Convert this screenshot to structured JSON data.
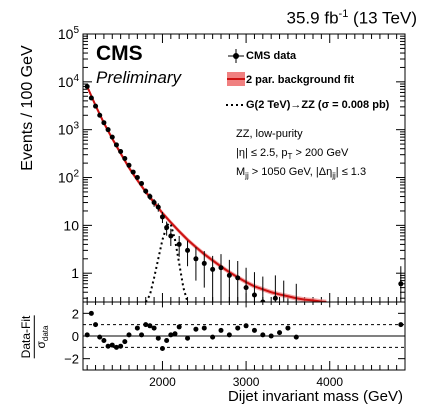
{
  "header": {
    "lumi_value": "35.9",
    "lumi_unit_base": "fb",
    "lumi_unit_exp": "-1",
    "energy": "(13 TeV)"
  },
  "branding": {
    "experiment": "CMS",
    "status": "Preliminary"
  },
  "legend": {
    "data": "CMS data",
    "fit": "2 par. background fit",
    "signal_prefix": "G(2 TeV)",
    "signal_arrow": "→",
    "signal_suffix": "ZZ (σ = 0.008 pb)"
  },
  "annotations": {
    "line1": "ZZ, low-purity",
    "line2a": "|η| ≤ 2.5, p",
    "line2sub": "T",
    "line2b": " > 200 GeV",
    "line3a": "M",
    "line3sub": "jj",
    "line3b": " > 1050 GeV, |Δη",
    "line3sub2": "jj",
    "line3c": "| ≤ 1.3"
  },
  "colors": {
    "fit_line": "#cc1111",
    "fit_band": "#f08080",
    "data": "#000000",
    "signal": "#000000"
  },
  "chart_data": {
    "type": "scatter",
    "title": "",
    "xlabel": "Dijet invariant mass (GeV)",
    "ylabel": "Events / 100 GeV",
    "xlim": [
      1050,
      4900
    ],
    "ylim": [
      0.25,
      100000
    ],
    "yscale": "log",
    "x_ticks": [
      2000,
      3000,
      4000
    ],
    "y_ticks": [
      {
        "value": 1,
        "base": "1",
        "exp": ""
      },
      {
        "value": 10,
        "base": "10",
        "exp": ""
      },
      {
        "value": 100,
        "base": "10",
        "exp": "2"
      },
      {
        "value": 1000,
        "base": "10",
        "exp": "3"
      },
      {
        "value": 10000,
        "base": "10",
        "exp": "4"
      },
      {
        "value": 100000,
        "base": "10",
        "exp": "5"
      }
    ],
    "series": [
      {
        "name": "CMS data",
        "x": [
          1100,
          1150,
          1200,
          1250,
          1300,
          1350,
          1400,
          1450,
          1500,
          1550,
          1600,
          1650,
          1700,
          1750,
          1800,
          1850,
          1900,
          1950,
          2000,
          2050,
          2100,
          2200,
          2300,
          2400,
          2500,
          2600,
          2700,
          2800,
          2900,
          3000,
          3100,
          3200,
          3350,
          3450,
          3600,
          4850
        ],
        "y": [
          8000,
          4600,
          3100,
          2000,
          1400,
          1000,
          700,
          480,
          350,
          250,
          180,
          130,
          100,
          75,
          52,
          40,
          30,
          24,
          15,
          9,
          6,
          4,
          3,
          2,
          1.6,
          1.2,
          1.3,
          0.9,
          0.8,
          0.5,
          0.35,
          0.25,
          0.3,
          0.2,
          0.15,
          0.6
        ],
        "err_up": [
          95,
          70,
          55,
          45,
          37,
          32,
          26,
          22,
          19,
          16,
          13,
          11,
          10,
          9,
          7,
          6.5,
          5.5,
          5,
          4,
          3,
          2.5,
          2,
          1.8,
          1.5,
          1.3,
          1.1,
          1.2,
          1,
          1,
          0.8,
          0.7,
          0.6,
          0.6,
          0.5,
          0.45,
          0.8
        ],
        "err_down": [
          90,
          68,
          55,
          44,
          37,
          31,
          26,
          22,
          18,
          16,
          13,
          11,
          10,
          8,
          7,
          6,
          5.5,
          4.7,
          3.8,
          2.9,
          2.3,
          1.8,
          1.6,
          1.3,
          1.1,
          1.0,
          1.0,
          0.8,
          0.7,
          0.45,
          0.3,
          0.2,
          0.25,
          0.17,
          0.12,
          0.5
        ]
      },
      {
        "name": "2 par. background fit",
        "x": [
          1100,
          1200,
          1300,
          1400,
          1500,
          1600,
          1700,
          1800,
          1900,
          2000,
          2100,
          2200,
          2300,
          2400,
          2500,
          2600,
          2700,
          2800,
          2900,
          3000,
          3100,
          3200,
          3300,
          3400,
          3500,
          3600,
          3700,
          3800,
          3900,
          3960
        ],
        "y": [
          8000,
          3200,
          1380,
          650,
          320,
          160,
          88,
          50,
          30,
          18,
          11.5,
          7.5,
          5.0,
          3.5,
          2.5,
          1.85,
          1.38,
          1.05,
          0.82,
          0.65,
          0.53,
          0.46,
          0.4,
          0.36,
          0.33,
          0.3,
          0.28,
          0.27,
          0.255,
          0.25
        ]
      },
      {
        "name": "G(2 TeV)→ZZ (σ = 0.008 pb)",
        "x": [
          1800,
          1850,
          1900,
          1950,
          2000,
          2050,
          2075,
          2100,
          2150,
          2200,
          2250,
          2300
        ],
        "y": [
          0.25,
          0.35,
          0.8,
          2.0,
          5.0,
          9.5,
          11,
          10.5,
          5.0,
          1.6,
          0.5,
          0.25
        ]
      }
    ],
    "ratio_panel": {
      "ylabel_top": "Data-Fit",
      "ylabel_bottom_sym": "σ",
      "ylabel_bottom_sub": "data",
      "ylim": [
        -3,
        3
      ],
      "y_ticks": [
        -2,
        0,
        2
      ],
      "dashed_lines": [
        -1,
        1
      ],
      "x": [
        1100,
        1150,
        1200,
        1250,
        1300,
        1350,
        1400,
        1450,
        1500,
        1550,
        1600,
        1700,
        1750,
        1800,
        1850,
        1900,
        1950,
        2000,
        2050,
        2100,
        2150,
        2200,
        2300,
        2400,
        2500,
        2600,
        2700,
        2800,
        2900,
        3000,
        3100,
        3200,
        3300,
        3400,
        3500,
        3600,
        4850
      ],
      "y": [
        0.1,
        2.0,
        1.0,
        -0.1,
        -0.4,
        -0.9,
        -0.8,
        -1.0,
        -0.9,
        -0.5,
        0.1,
        0.7,
        0.1,
        1.0,
        0.9,
        0.7,
        -0.2,
        -1.1,
        -0.4,
        0.1,
        0.2,
        0.8,
        -0.2,
        0.6,
        0.7,
        -0.1,
        0.5,
        0.1,
        0.7,
        0.9,
        0.5,
        0.1,
        0.0,
        0.3,
        0.7,
        -0.1,
        1.0
      ]
    }
  }
}
